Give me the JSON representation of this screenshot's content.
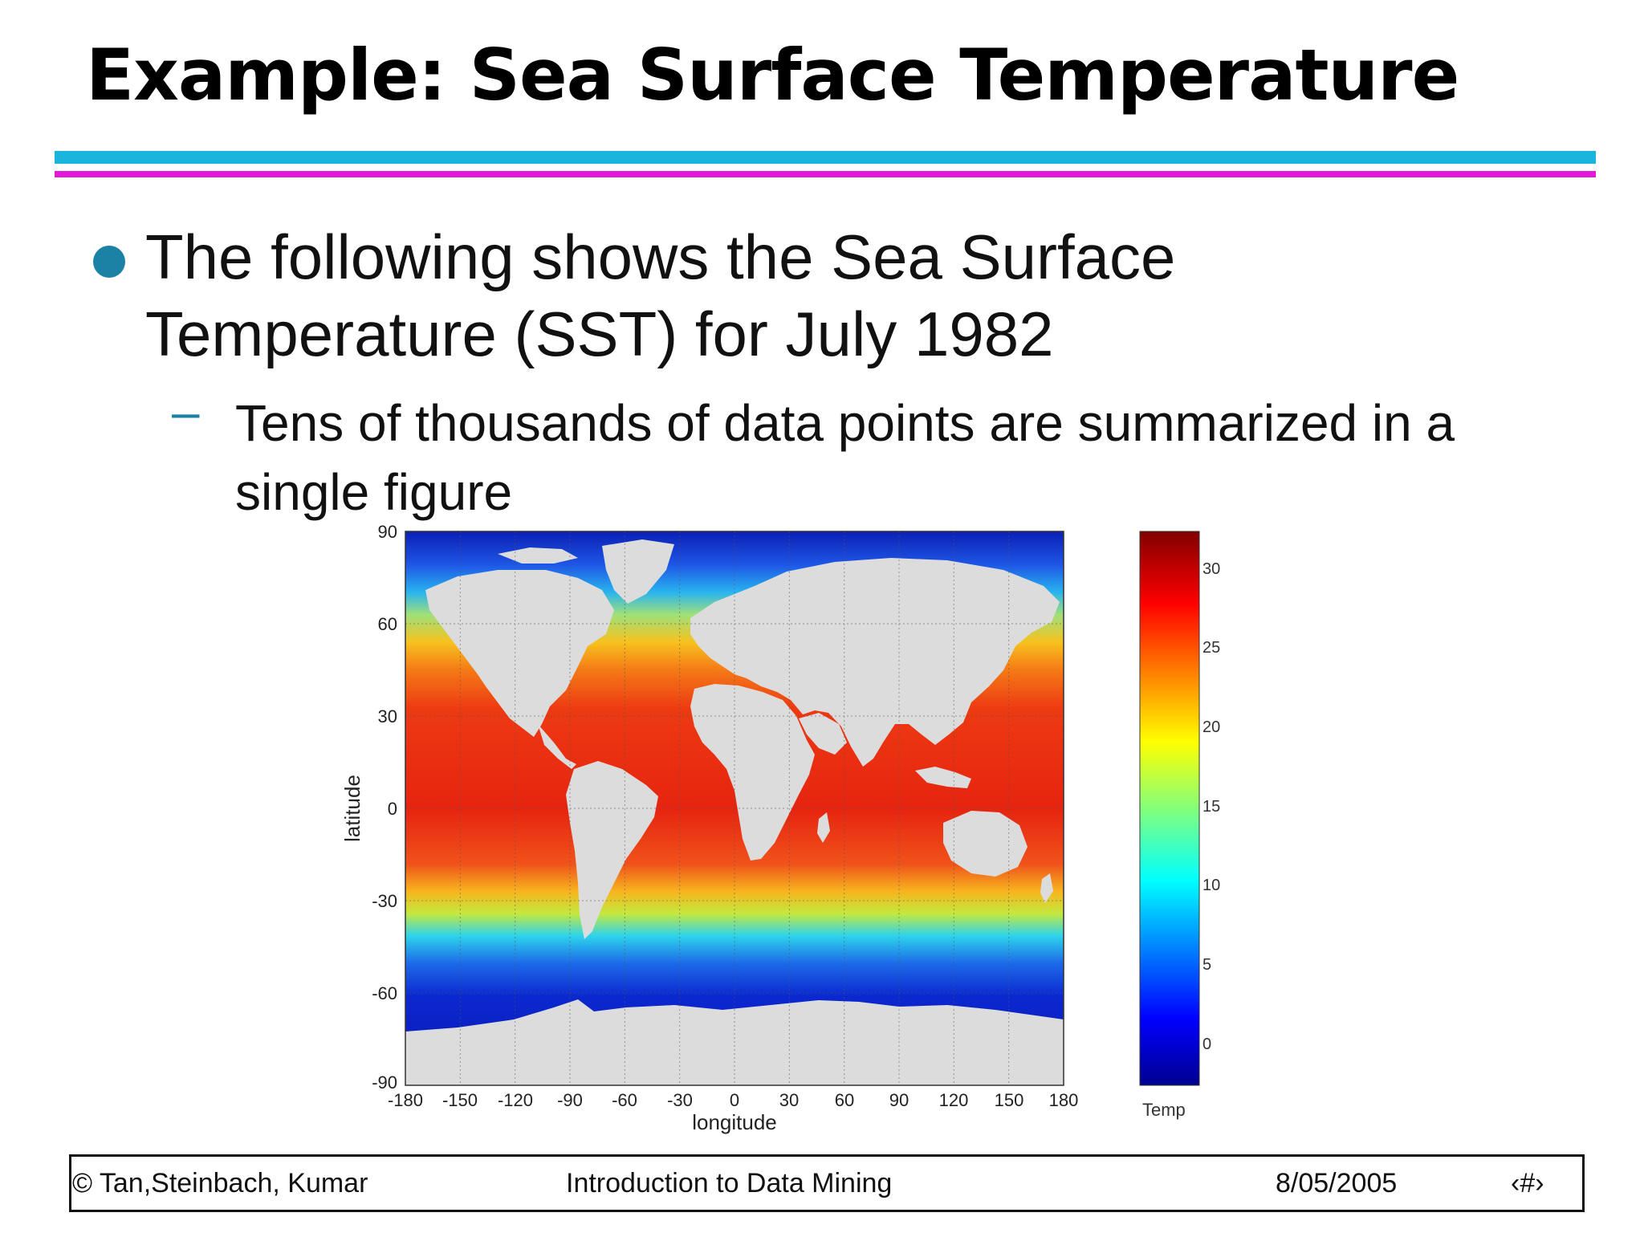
{
  "slide": {
    "title": "Example: Sea Surface Temperature",
    "bullet_line1": "The following shows the Sea Surface",
    "bullet_line2": "Temperature (SST) for July 1982",
    "sub_dash": "–",
    "sub_line1": "Tens of thousands of data points are summarized in a",
    "sub_line2": "single figure"
  },
  "figure": {
    "xlabel": "longitude",
    "ylabel": "latitude",
    "x_ticks": [
      "-180",
      "-150",
      "-120",
      "-90",
      "-60",
      "-30",
      "0",
      "30",
      "60",
      "90",
      "120",
      "150",
      "180"
    ],
    "y_ticks": [
      "90",
      "60",
      "30",
      "0",
      "-30",
      "-60",
      "-90"
    ],
    "colorbar_label": "Temp",
    "colorbar_ticks": [
      "30",
      "25",
      "20",
      "15",
      "10",
      "5",
      "0"
    ],
    "colorbar_range": [
      -2,
      33
    ],
    "land_color": "#dcdcdc",
    "colormap": "jet"
  },
  "footer": {
    "authors": "© Tan,Steinbach, Kumar",
    "course": "Introduction to Data Mining",
    "date": "8/05/2005",
    "page": "‹#›"
  }
}
